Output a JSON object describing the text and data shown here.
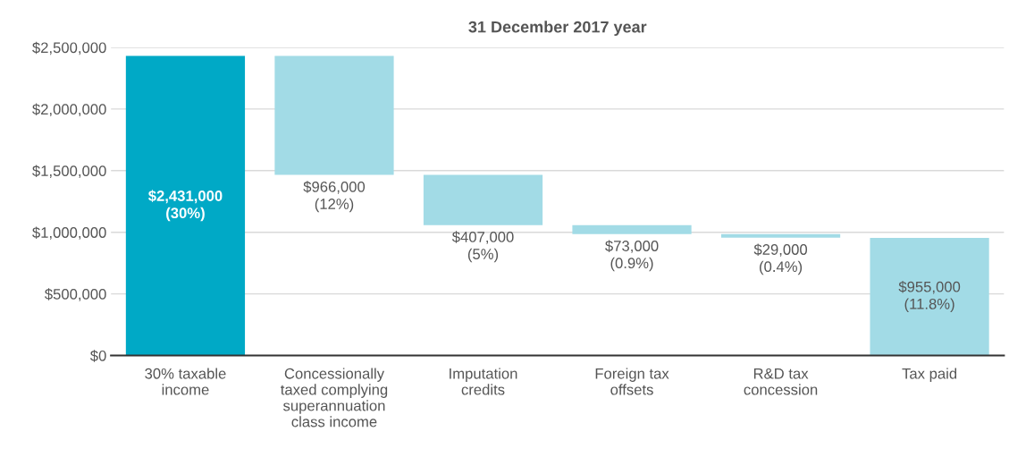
{
  "chart_data": {
    "type": "bar",
    "title": "31 December 2017 year",
    "categories": [
      "30% taxable\nincome",
      "Concessionally\ntaxed complying\nsuperannuation\nclass income",
      "Imputation\ncredits",
      "Foreign tax\noffsets",
      "R&D tax\nconcession",
      "Tax paid"
    ],
    "values": [
      2431000,
      966000,
      407000,
      73000,
      29000,
      955000
    ],
    "base": [
      0,
      1465000,
      1058000,
      985000,
      956000,
      0
    ],
    "colors": [
      "#00a9c6",
      "#a2dbe6",
      "#a2dbe6",
      "#a2dbe6",
      "#a2dbe6",
      "#a2dbe6"
    ],
    "value_labels": [
      "$2,431,000\n(30%)",
      "$966,000\n(12%)",
      "$407,000\n(5%)",
      "$73,000\n(0.9%)",
      "$29,000\n(0.4%)",
      "$955,000\n(11.8%)"
    ],
    "ylim": [
      0,
      2500000
    ],
    "yticks": [
      {
        "value": 0,
        "label": "$0"
      },
      {
        "value": 500000,
        "label": "$500,000"
      },
      {
        "value": 1000000,
        "label": "$1,000,000"
      },
      {
        "value": 1500000,
        "label": "$1,500,000"
      },
      {
        "value": 2000000,
        "label": "$2,000,000"
      },
      {
        "value": 2500000,
        "label": "$2,500,000"
      }
    ],
    "grid": "y"
  }
}
